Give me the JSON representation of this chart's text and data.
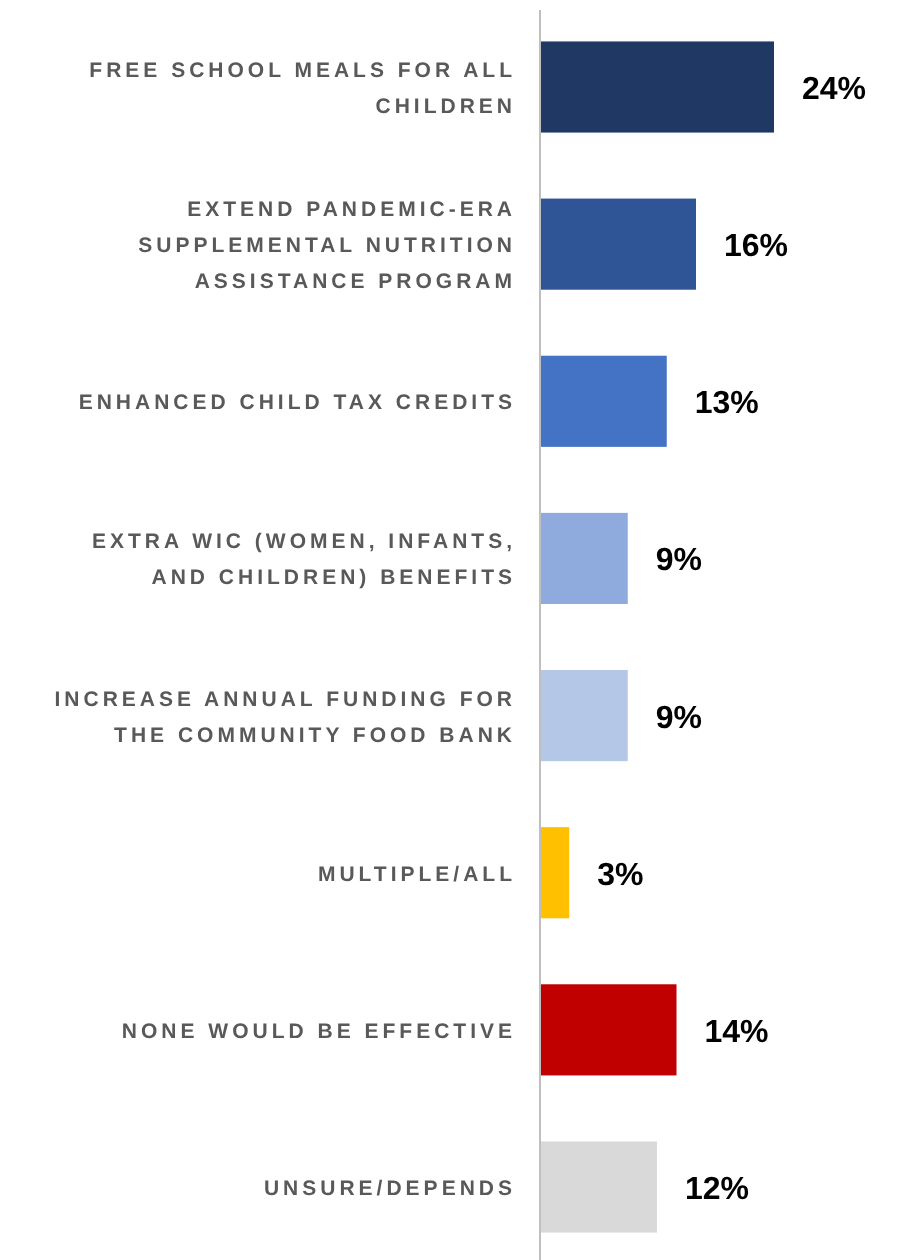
{
  "chart_data": {
    "type": "bar",
    "orientation": "horizontal",
    "data_labels": true,
    "categories": [
      "FREE SCHOOL MEALS FOR ALL CHILDREN",
      "EXTEND PANDEMIC-ERA SUPPLEMENTAL NUTRITION ASSISTANCE PROGRAM",
      "ENHANCED CHILD TAX CREDITS",
      "EXTRA WIC (WOMEN, INFANTS, AND CHILDREN) BENEFITS",
      "INCREASE ANNUAL FUNDING FOR THE COMMUNITY FOOD BANK",
      "MULTIPLE/ALL",
      "NONE WOULD BE EFFECTIVE",
      "UNSURE/DEPENDS"
    ],
    "values": [
      24,
      16,
      13,
      9,
      9,
      3,
      14,
      12
    ],
    "value_labels": [
      "24%",
      "16%",
      "13%",
      "9%",
      "9%",
      "3%",
      "14%",
      "12%"
    ],
    "colors": [
      "#203864",
      "#2f5597",
      "#4472c4",
      "#8faadc",
      "#b4c7e7",
      "#ffc000",
      "#c00000",
      "#d9d9d9"
    ]
  }
}
